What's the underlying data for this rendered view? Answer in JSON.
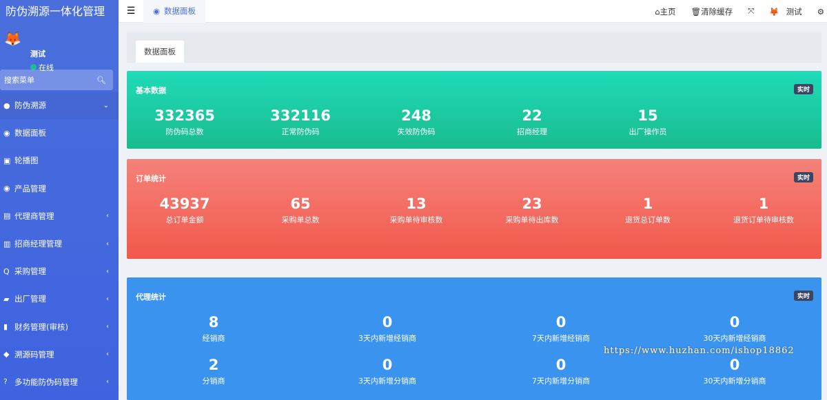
{
  "app": {
    "title": "防伪溯源一体化管理"
  },
  "user": {
    "name": "测试",
    "status": "在线"
  },
  "search": {
    "placeholder": "搜索菜单"
  },
  "menu": [
    {
      "label": "防伪溯源",
      "icon": "droplet-icon",
      "expanded": true
    },
    {
      "label": "数据面板",
      "icon": "globe-icon"
    },
    {
      "label": "轮播图",
      "icon": "image-icon"
    },
    {
      "label": "产品管理",
      "icon": "globe-icon"
    },
    {
      "label": "代理商管理",
      "icon": "id-card-icon"
    },
    {
      "label": "招商经理管理",
      "icon": "badge-icon"
    },
    {
      "label": "采购管理",
      "icon": "search-q-icon"
    },
    {
      "label": "出厂管理",
      "icon": "truck-icon"
    },
    {
      "label": "财务管理(审核)",
      "icon": "book-icon"
    },
    {
      "label": "溯源码管理",
      "icon": "cubes-icon"
    },
    {
      "label": "多功能防伪码管理",
      "icon": "question-icon"
    }
  ],
  "topbar": {
    "tab": "数据面板",
    "home": "主页",
    "clear_cache": "清除缓存",
    "user": "测试"
  },
  "page_tab": "数据面板",
  "basic": {
    "title": "基本数据",
    "badge": "实时",
    "stats": [
      {
        "value": "332365",
        "label": "防伪码总数"
      },
      {
        "value": "332116",
        "label": "正常防伪码"
      },
      {
        "value": "248",
        "label": "失效防伪码"
      },
      {
        "value": "22",
        "label": "招商经理"
      },
      {
        "value": "15",
        "label": "出厂操作员"
      }
    ]
  },
  "orders": {
    "title": "订单统计",
    "badge": "实时",
    "stats": [
      {
        "value": "43937",
        "label": "总订单金额"
      },
      {
        "value": "65",
        "label": "采购单总数"
      },
      {
        "value": "13",
        "label": "采购单待审核数"
      },
      {
        "value": "23",
        "label": "采购单待出库数"
      },
      {
        "value": "1",
        "label": "退货总订单数"
      },
      {
        "value": "1",
        "label": "退货订单待审核数"
      }
    ]
  },
  "agents": {
    "title": "代理统计",
    "badge": "实时",
    "stats": [
      {
        "value": "8",
        "label": "经销商"
      },
      {
        "value": "0",
        "label": "3天内新增经销商"
      },
      {
        "value": "0",
        "label": "7天内新增经销商"
      },
      {
        "value": "0",
        "label": "30天内新增经销商"
      },
      {
        "value": "2",
        "label": "分销商"
      },
      {
        "value": "0",
        "label": "3天内新增分销商"
      },
      {
        "value": "0",
        "label": "7天内新增分销商"
      },
      {
        "value": "0",
        "label": "30天内新增分销商"
      }
    ]
  },
  "watermark": "https://www.huzhan.com/ishop18862"
}
